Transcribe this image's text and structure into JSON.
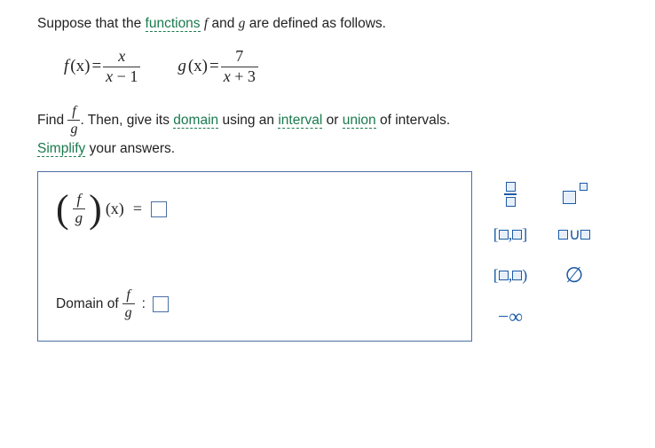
{
  "intro": {
    "prefix": "Suppose that the ",
    "link": "functions",
    "mid": " ",
    "f": "f",
    "and": " and ",
    "g": "g",
    "suffix": " are defined as follows."
  },
  "funcs": {
    "f_lhs_name": "f",
    "f_lhs_arg": "(x)",
    "eq": " = ",
    "f_num": "x",
    "f_den_a": "x",
    "f_den_op": "−",
    "f_den_b": "1",
    "g_lhs_name": "g",
    "g_lhs_arg": "(x)",
    "g_num": "7",
    "g_den_a": "x",
    "g_den_op": "+",
    "g_den_b": "3"
  },
  "task": {
    "find": "Find ",
    "frac_top": "f",
    "frac_bot": "g",
    "period": ". Then, give its ",
    "domain_link": "domain",
    "mid2": " using an ",
    "interval_link": "interval",
    "or": " or ",
    "union_link": "union",
    "tail": " of intervals.",
    "simplify_link": "Simplify",
    "simplify_tail": " your answers."
  },
  "answer": {
    "fg_top": "f",
    "fg_bot": "g",
    "arg": "(x)",
    "eq": " = ",
    "domain_label": "Domain of ",
    "colon": ":"
  },
  "palette": {
    "closed_int": "[□,□]",
    "half_int": "[□,□)",
    "neg_inf": "−∞",
    "empty": "∅"
  }
}
